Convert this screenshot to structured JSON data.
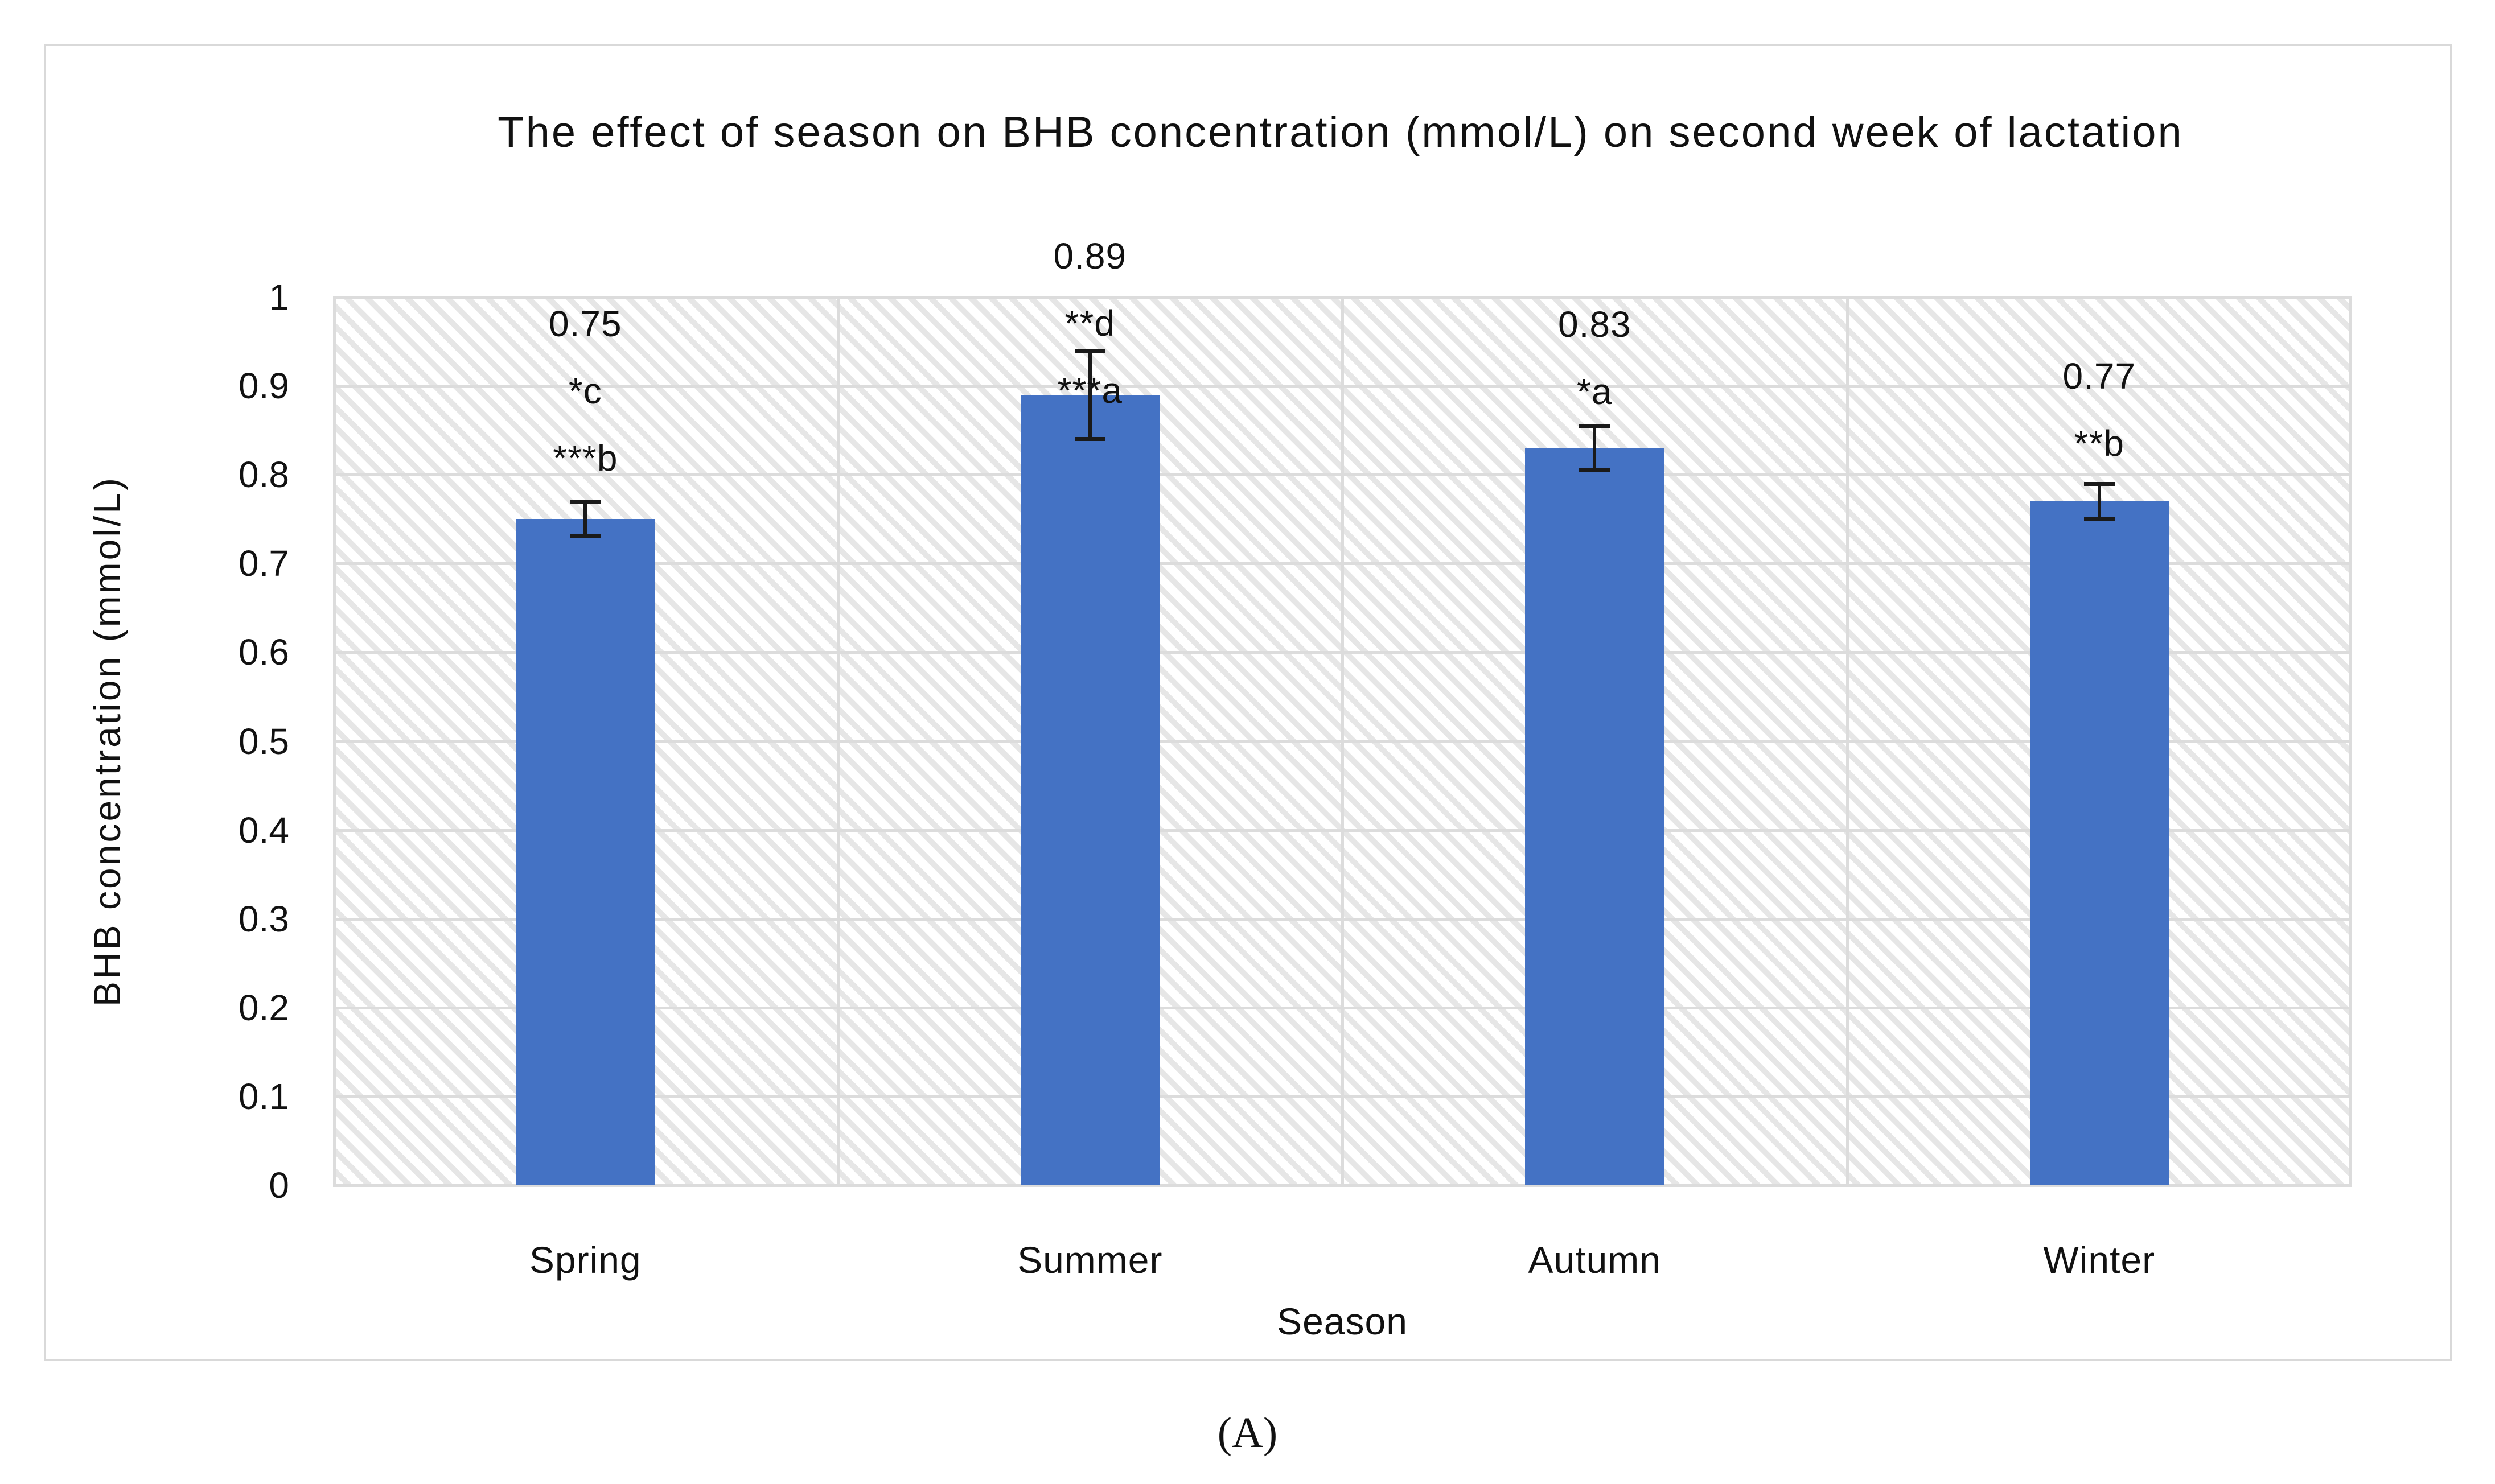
{
  "figure": {
    "caption": "(A)"
  },
  "chart_data": {
    "type": "bar",
    "title": "The effect of season on BHB concentration (mmol/L) on second week of lactation",
    "xlabel": "Season",
    "ylabel": "BHB concentration (mmol/L)",
    "categories": [
      "Spring",
      "Summer",
      "Autumn",
      "Winter"
    ],
    "values": [
      0.75,
      0.89,
      0.83,
      0.77
    ],
    "error_bars_plus_minus": [
      0.02,
      0.05,
      0.025,
      0.02
    ],
    "bar_labels": [
      [
        "0.75",
        "*c",
        "***b"
      ],
      [
        "0.89",
        "**d",
        "***a"
      ],
      [
        "0.83",
        "*a"
      ],
      [
        "0.77",
        "**b"
      ]
    ],
    "label_top_anchor_value": [
      0.97,
      1.046,
      0.969,
      0.911
    ],
    "ylim": [
      0,
      1
    ],
    "yticks": [
      "1",
      "0.9",
      "0.8",
      "0.7",
      "0.6",
      "0.5",
      "0.4",
      "0.3",
      "0.2",
      "0.1",
      "0"
    ],
    "grid": {
      "horizontal": true,
      "vertical_category_separators": true
    },
    "legend": "none",
    "plot_background": "white with light diagonal hatch stripes",
    "colors": {
      "bar": "#4472C4",
      "gridline": "#DCDCDC",
      "hatch_stripe": "#E6E6E6",
      "frame_border": "#D9D9D9",
      "error_bar": "#1A1A1A",
      "text": "#111111"
    }
  }
}
